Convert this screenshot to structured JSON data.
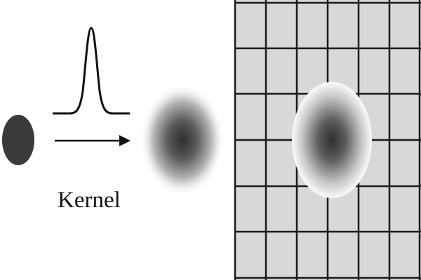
{
  "figure": {
    "kernel_label": "Kernel",
    "grid": {
      "columns": 6,
      "rows": 6
    },
    "colors": {
      "background": "#ffffff",
      "point": "#3a3a3a",
      "line": "#111111",
      "grid_cell": "#d8d8d8",
      "grid_line": "#1a1a1a",
      "blob_core": "#3a3a3a",
      "blob_halo": "#f8f8f8"
    },
    "icons": {
      "source_point": "dot-icon",
      "kernel_curve": "gaussian-curve-icon",
      "direction": "arrow-right-icon"
    }
  }
}
